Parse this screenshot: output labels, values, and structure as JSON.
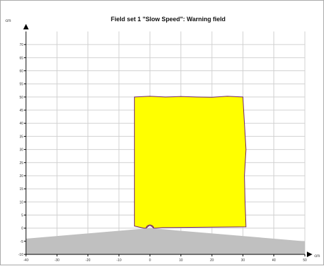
{
  "chart_data": {
    "type": "area",
    "title": "Field set 1 \"Slow Speed\": Warning field",
    "xlabel": "cm",
    "ylabel": "cm",
    "xlim": [
      -40,
      50
    ],
    "ylim": [
      -10,
      75
    ],
    "xticks": [
      -40,
      -30,
      -20,
      -10,
      0,
      10,
      20,
      30,
      40,
      50
    ],
    "yticks": [
      -10,
      -5,
      0,
      5,
      10,
      15,
      20,
      25,
      30,
      35,
      40,
      45,
      50,
      55,
      60,
      65,
      70
    ],
    "grid": true,
    "series": [
      {
        "kind": "warning-field",
        "color": "#ffff00",
        "outline": "#6d1f6d",
        "points": [
          [
            -5.0,
            0.8
          ],
          [
            -5.0,
            50.0
          ],
          [
            0.0,
            50.3
          ],
          [
            5.0,
            50.0
          ],
          [
            10.0,
            50.2
          ],
          [
            15.0,
            50.0
          ],
          [
            20.0,
            49.9
          ],
          [
            25.0,
            50.3
          ],
          [
            30.0,
            50.0
          ],
          [
            30.5,
            40.0
          ],
          [
            31.0,
            30.0
          ],
          [
            30.5,
            20.0
          ],
          [
            30.7,
            10.0
          ],
          [
            31.0,
            0.5
          ],
          [
            4.0,
            0.2
          ],
          [
            2.0,
            0.0
          ],
          [
            1.2,
            0.0
          ],
          [
            0.0,
            1.2
          ],
          [
            -1.2,
            0.0
          ],
          [
            -2.0,
            0.0
          ],
          [
            -5.0,
            0.8
          ]
        ]
      },
      {
        "kind": "background-area",
        "color": "#c0c0c0",
        "points": [
          [
            -40.0,
            -4.0
          ],
          [
            0.0,
            0.0
          ],
          [
            50.0,
            -5.0
          ],
          [
            50.0,
            -10.0
          ],
          [
            -40.0,
            -10.0
          ]
        ]
      }
    ],
    "annotations": [
      {
        "kind": "semicircle",
        "center": [
          0.0,
          0.0
        ],
        "radius": 1.2,
        "color": "#6d1f6d"
      }
    ]
  }
}
